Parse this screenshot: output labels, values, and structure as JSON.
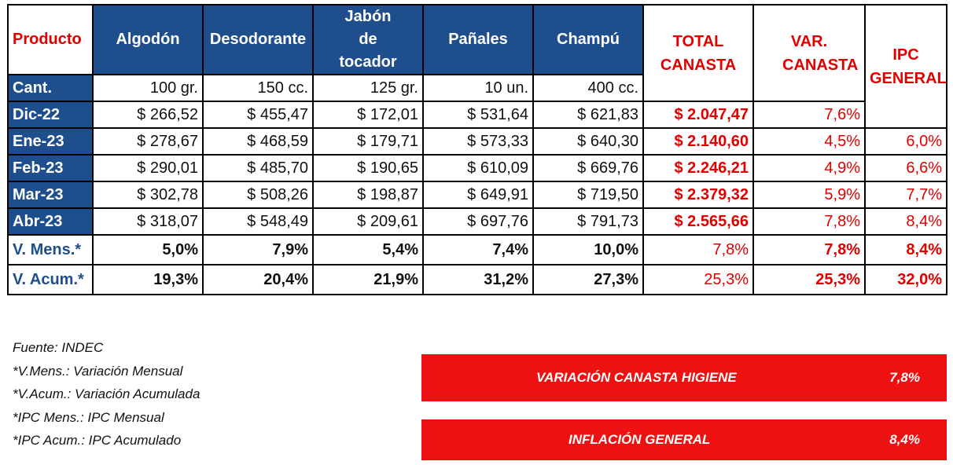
{
  "header": {
    "producto": "Producto",
    "products": [
      "Algodón",
      "Desodorante",
      "Jabón de tocador",
      "Pañales",
      "Champú"
    ],
    "total": "TOTAL CANASTA",
    "var": "VAR. CANASTA",
    "ipc": "IPC GENERAL"
  },
  "cant": {
    "label": "Cant.",
    "units": [
      "100 gr.",
      "150 cc.",
      "125 gr.",
      "10 un.",
      "400 cc."
    ]
  },
  "rows": [
    {
      "label": "Dic-22",
      "prices": [
        "$ 266,52",
        "$ 455,47",
        "$ 172,01",
        "$ 531,64",
        "$ 621,83"
      ],
      "total": "$ 2.047,47",
      "var": "7,6%",
      "ipc": ""
    },
    {
      "label": "Ene-23",
      "prices": [
        "$ 278,67",
        "$ 468,59",
        "$ 179,71",
        "$ 573,33",
        "$ 640,30"
      ],
      "total": "$ 2.140,60",
      "var": "4,5%",
      "ipc": "6,0%"
    },
    {
      "label": "Feb-23",
      "prices": [
        "$ 290,01",
        "$ 485,70",
        "$ 190,65",
        "$ 610,09",
        "$ 669,76"
      ],
      "total": "$ 2.246,21",
      "var": "4,9%",
      "ipc": "6,6%"
    },
    {
      "label": "Mar-23",
      "prices": [
        "$ 302,78",
        "$ 508,26",
        "$ 198,87",
        "$ 649,91",
        "$ 719,50"
      ],
      "total": "$ 2.379,32",
      "var": "5,9%",
      "ipc": "7,7%"
    },
    {
      "label": "Abr-23",
      "prices": [
        "$ 318,07",
        "$ 548,49",
        "$ 209,61",
        "$ 697,76",
        "$ 791,73"
      ],
      "total": "$ 2.565,66",
      "var": "7,8%",
      "ipc": "8,4%"
    }
  ],
  "mens": {
    "label": "V. Mens.*",
    "values": [
      "5,0%",
      "7,9%",
      "5,4%",
      "7,4%",
      "10,0%"
    ],
    "total": "7,8%",
    "var": "7,8%",
    "ipc": "8,4%"
  },
  "acum": {
    "label": "V. Acum.*",
    "values": [
      "19,3%",
      "20,4%",
      "21,9%",
      "31,2%",
      "27,3%"
    ],
    "total": "25,3%",
    "var": "25,3%",
    "ipc": "32,0%"
  },
  "notes": [
    "Fuente: INDEC",
    "*V.Mens.: Variación Mensual",
    "*V.Acum.: Variación Acumulada",
    "*IPC Mens.: IPC Mensual",
    "*IPC Acum.: IPC Acumulado"
  ],
  "banners": [
    {
      "label": "VARIACIÓN CANASTA HIGIENE",
      "value": "7,8%"
    },
    {
      "label": "INFLACIÓN GENERAL",
      "value": "8,4%"
    }
  ],
  "colors": {
    "header_blue": "#1f4e8c",
    "accent_red": "#e00000",
    "banner_red": "#ee1111"
  }
}
